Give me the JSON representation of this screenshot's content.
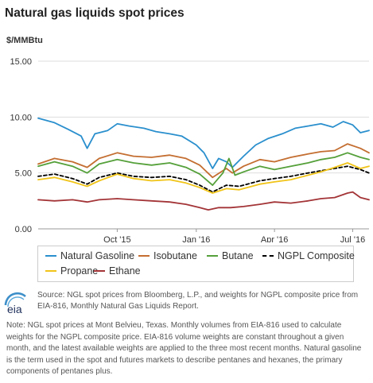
{
  "chart_data": {
    "type": "line",
    "title": "Natural gas liquids spot prices",
    "ylabel": "$/MMBtu",
    "ylim": [
      0,
      15
    ],
    "y_ticks": [
      "0.00",
      "5.00",
      "10.00",
      "15.00"
    ],
    "x_range": [
      "2015-07-01",
      "2016-07-20"
    ],
    "x_ticks": [
      {
        "date": "2015-10-01",
        "label": "Oct '15"
      },
      {
        "date": "2016-01-01",
        "label": "Jan '16"
      },
      {
        "date": "2016-04-01",
        "label": "Apr '16"
      },
      {
        "date": "2016-07-01",
        "label": "Jul '16"
      }
    ],
    "grid": "horizontal",
    "legend_position": "bottom",
    "series": [
      {
        "name": "Natural Gasoline",
        "color": "#2a8fcd",
        "dash": false,
        "points": [
          [
            "2015-07-01",
            9.9
          ],
          [
            "2015-07-20",
            9.5
          ],
          [
            "2015-08-05",
            8.9
          ],
          [
            "2015-08-20",
            8.3
          ],
          [
            "2015-08-27",
            7.2
          ],
          [
            "2015-09-05",
            8.5
          ],
          [
            "2015-09-20",
            8.8
          ],
          [
            "2015-10-01",
            9.4
          ],
          [
            "2015-10-15",
            9.2
          ],
          [
            "2015-11-01",
            9.0
          ],
          [
            "2015-11-15",
            8.7
          ],
          [
            "2015-12-01",
            8.5
          ],
          [
            "2015-12-15",
            8.3
          ],
          [
            "2016-01-01",
            7.5
          ],
          [
            "2016-01-10",
            6.8
          ],
          [
            "2016-01-20",
            5.4
          ],
          [
            "2016-01-27",
            6.3
          ],
          [
            "2016-02-05",
            6.0
          ],
          [
            "2016-02-12",
            5.5
          ],
          [
            "2016-02-25",
            6.5
          ],
          [
            "2016-03-10",
            7.5
          ],
          [
            "2016-03-25",
            8.1
          ],
          [
            "2016-04-10",
            8.5
          ],
          [
            "2016-04-25",
            9.0
          ],
          [
            "2016-05-10",
            9.2
          ],
          [
            "2016-05-25",
            9.4
          ],
          [
            "2016-06-08",
            9.1
          ],
          [
            "2016-06-20",
            9.6
          ],
          [
            "2016-07-01",
            9.3
          ],
          [
            "2016-07-10",
            8.6
          ],
          [
            "2016-07-20",
            8.8
          ]
        ]
      },
      {
        "name": "Isobutane",
        "color": "#c46e31",
        "dash": false,
        "points": [
          [
            "2015-07-01",
            5.8
          ],
          [
            "2015-07-20",
            6.3
          ],
          [
            "2015-08-10",
            6.0
          ],
          [
            "2015-08-27",
            5.5
          ],
          [
            "2015-09-10",
            6.3
          ],
          [
            "2015-10-01",
            6.8
          ],
          [
            "2015-10-20",
            6.5
          ],
          [
            "2015-11-10",
            6.4
          ],
          [
            "2015-12-01",
            6.6
          ],
          [
            "2015-12-20",
            6.3
          ],
          [
            "2016-01-05",
            5.7
          ],
          [
            "2016-01-20",
            4.6
          ],
          [
            "2016-02-05",
            5.4
          ],
          [
            "2016-02-12",
            5.0
          ],
          [
            "2016-02-25",
            5.6
          ],
          [
            "2016-03-15",
            6.2
          ],
          [
            "2016-04-01",
            6.0
          ],
          [
            "2016-04-20",
            6.4
          ],
          [
            "2016-05-10",
            6.7
          ],
          [
            "2016-05-25",
            6.9
          ],
          [
            "2016-06-10",
            7.0
          ],
          [
            "2016-06-25",
            7.6
          ],
          [
            "2016-07-10",
            7.2
          ],
          [
            "2016-07-20",
            6.8
          ]
        ]
      },
      {
        "name": "Butane",
        "color": "#55a03a",
        "dash": false,
        "points": [
          [
            "2015-07-01",
            5.6
          ],
          [
            "2015-07-20",
            6.0
          ],
          [
            "2015-08-10",
            5.6
          ],
          [
            "2015-08-27",
            5.0
          ],
          [
            "2015-09-10",
            5.8
          ],
          [
            "2015-10-01",
            6.2
          ],
          [
            "2015-10-20",
            5.9
          ],
          [
            "2015-11-10",
            5.7
          ],
          [
            "2015-12-01",
            5.9
          ],
          [
            "2015-12-20",
            5.5
          ],
          [
            "2016-01-05",
            4.9
          ],
          [
            "2016-01-20",
            3.9
          ],
          [
            "2016-02-01",
            5.0
          ],
          [
            "2016-02-08",
            6.3
          ],
          [
            "2016-02-15",
            4.8
          ],
          [
            "2016-02-25",
            5.1
          ],
          [
            "2016-03-15",
            5.6
          ],
          [
            "2016-04-01",
            5.3
          ],
          [
            "2016-04-20",
            5.6
          ],
          [
            "2016-05-10",
            5.9
          ],
          [
            "2016-05-25",
            6.2
          ],
          [
            "2016-06-10",
            6.4
          ],
          [
            "2016-06-25",
            6.8
          ],
          [
            "2016-07-10",
            6.4
          ],
          [
            "2016-07-20",
            6.2
          ]
        ]
      },
      {
        "name": "NGPL Composite",
        "color": "#000000",
        "dash": true,
        "points": [
          [
            "2015-07-01",
            4.7
          ],
          [
            "2015-07-20",
            4.9
          ],
          [
            "2015-08-10",
            4.5
          ],
          [
            "2015-08-27",
            4.0
          ],
          [
            "2015-09-10",
            4.6
          ],
          [
            "2015-10-01",
            5.0
          ],
          [
            "2015-10-20",
            4.7
          ],
          [
            "2015-11-10",
            4.6
          ],
          [
            "2015-12-01",
            4.7
          ],
          [
            "2015-12-20",
            4.4
          ],
          [
            "2016-01-05",
            3.9
          ],
          [
            "2016-01-20",
            3.3
          ],
          [
            "2016-02-05",
            3.9
          ],
          [
            "2016-02-20",
            3.8
          ],
          [
            "2016-03-15",
            4.3
          ],
          [
            "2016-04-01",
            4.5
          ],
          [
            "2016-04-20",
            4.7
          ],
          [
            "2016-05-10",
            5.0
          ],
          [
            "2016-05-25",
            5.2
          ],
          [
            "2016-06-10",
            5.4
          ],
          [
            "2016-06-25",
            5.6
          ],
          [
            "2016-07-10",
            5.3
          ],
          [
            "2016-07-20",
            5.0
          ]
        ]
      },
      {
        "name": "Propane",
        "color": "#f0c419",
        "dash": false,
        "points": [
          [
            "2015-07-01",
            4.4
          ],
          [
            "2015-07-20",
            4.6
          ],
          [
            "2015-08-10",
            4.2
          ],
          [
            "2015-08-27",
            3.8
          ],
          [
            "2015-09-10",
            4.3
          ],
          [
            "2015-10-01",
            4.9
          ],
          [
            "2015-10-20",
            4.5
          ],
          [
            "2015-11-10",
            4.3
          ],
          [
            "2015-12-01",
            4.4
          ],
          [
            "2015-12-20",
            4.1
          ],
          [
            "2016-01-05",
            3.7
          ],
          [
            "2016-01-20",
            3.2
          ],
          [
            "2016-02-05",
            3.6
          ],
          [
            "2016-02-20",
            3.5
          ],
          [
            "2016-03-15",
            4.0
          ],
          [
            "2016-04-01",
            4.2
          ],
          [
            "2016-04-20",
            4.4
          ],
          [
            "2016-05-10",
            4.8
          ],
          [
            "2016-05-25",
            5.1
          ],
          [
            "2016-06-10",
            5.5
          ],
          [
            "2016-06-25",
            5.9
          ],
          [
            "2016-07-10",
            5.4
          ],
          [
            "2016-07-20",
            5.6
          ]
        ]
      },
      {
        "name": "Ethane",
        "color": "#a33437",
        "dash": false,
        "points": [
          [
            "2015-07-01",
            2.6
          ],
          [
            "2015-07-20",
            2.5
          ],
          [
            "2015-08-10",
            2.6
          ],
          [
            "2015-08-27",
            2.4
          ],
          [
            "2015-09-10",
            2.6
          ],
          [
            "2015-10-01",
            2.7
          ],
          [
            "2015-10-20",
            2.6
          ],
          [
            "2015-11-10",
            2.5
          ],
          [
            "2015-12-01",
            2.4
          ],
          [
            "2015-12-20",
            2.2
          ],
          [
            "2016-01-05",
            1.9
          ],
          [
            "2016-01-15",
            1.7
          ],
          [
            "2016-01-27",
            1.9
          ],
          [
            "2016-02-10",
            1.9
          ],
          [
            "2016-02-25",
            2.0
          ],
          [
            "2016-03-15",
            2.2
          ],
          [
            "2016-04-01",
            2.4
          ],
          [
            "2016-04-20",
            2.3
          ],
          [
            "2016-05-10",
            2.5
          ],
          [
            "2016-05-25",
            2.7
          ],
          [
            "2016-06-10",
            2.8
          ],
          [
            "2016-06-25",
            3.2
          ],
          [
            "2016-07-01",
            3.3
          ],
          [
            "2016-07-10",
            2.8
          ],
          [
            "2016-07-20",
            2.6
          ]
        ]
      }
    ]
  },
  "legend": [
    {
      "label": "Natural Gasoline",
      "color": "#2a8fcd",
      "dash": false
    },
    {
      "label": "Isobutane",
      "color": "#c46e31",
      "dash": false
    },
    {
      "label": "Butane",
      "color": "#55a03a",
      "dash": false
    },
    {
      "label": "NGPL Composite",
      "color": "#000000",
      "dash": true
    },
    {
      "label": "Propane",
      "color": "#f0c419",
      "dash": false
    },
    {
      "label": "Ethane",
      "color": "#a33437",
      "dash": false
    }
  ],
  "footer": {
    "logo_text": "eia",
    "source": "Source: NGL spot prices from Bloomberg, L.P., and weights for NGPL composite price from EIA-816, Monthly Natural Gas Liquids Report.",
    "note": "Note: NGL spot prices at Mont Belvieu, Texas. Monthly volumes from EIA-816 used to calculate weights for the NGPL composite price. EIA-816 volume weights are constant throughout a given month, and the latest available weights are applied to the three most recent months. Natural gasoline is the term used in the spot and futures markets to describe pentanes and hexanes, the primary components of pentanes plus."
  }
}
